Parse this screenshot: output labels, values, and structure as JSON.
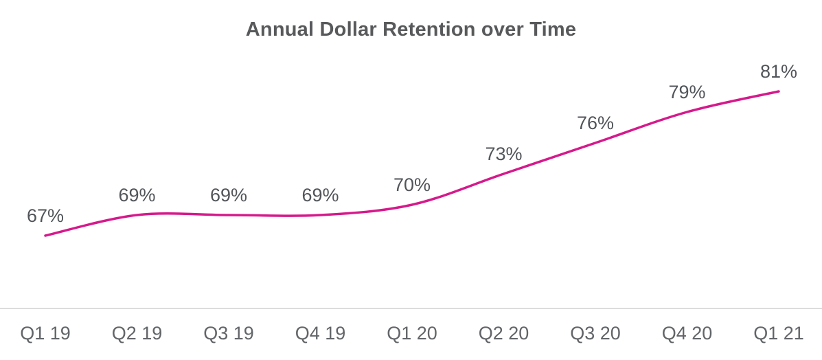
{
  "chart_data": {
    "type": "line",
    "title": "Annual Dollar Retention over Time",
    "categories": [
      "Q1 19",
      "Q2 19",
      "Q3 19",
      "Q4 19",
      "Q1 20",
      "Q2 20",
      "Q3 20",
      "Q4 20",
      "Q1 21"
    ],
    "values": [
      67,
      69,
      69,
      69,
      70,
      73,
      76,
      79,
      81
    ],
    "data_labels": [
      "67%",
      "69%",
      "69%",
      "69%",
      "70%",
      "73%",
      "76%",
      "79%",
      "81%"
    ],
    "xlabel": "",
    "ylabel": "",
    "ylim": [
      60,
      85
    ],
    "grid": false,
    "legend": false,
    "smooth": true,
    "colors": {
      "line": "#D6198C",
      "title": "#57595B",
      "data_label": "#515559",
      "axis_label": "#626568",
      "axis_line": "#DCDCDC",
      "background": "#FFFFFF"
    }
  }
}
